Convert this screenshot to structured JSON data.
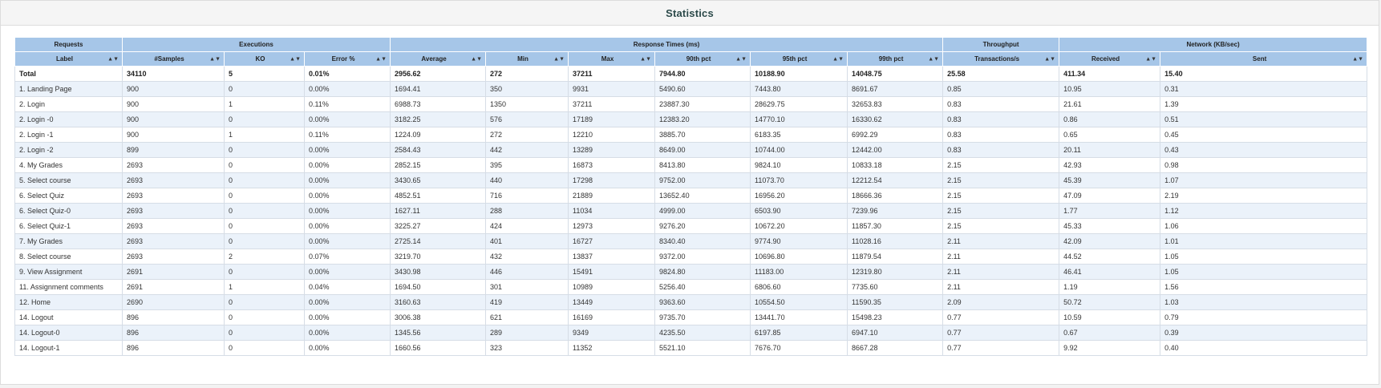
{
  "panel": {
    "title": "Statistics"
  },
  "groups": [
    "Requests",
    "Executions",
    "Response Times (ms)",
    "Throughput",
    "Network (KB/sec)"
  ],
  "columns": [
    "Label",
    "#Samples",
    "KO",
    "Error %",
    "Average",
    "Min",
    "Max",
    "90th pct",
    "95th pct",
    "99th pct",
    "Transactions/s",
    "Received",
    "Sent"
  ],
  "sort_icons": {
    "label": "▲▼",
    "column": "▲▼"
  },
  "total": [
    "Total",
    "34110",
    "5",
    "0.01%",
    "2956.62",
    "272",
    "37211",
    "7944.80",
    "10188.90",
    "14048.75",
    "25.58",
    "411.34",
    "15.40"
  ],
  "rows": [
    [
      "1. Landing Page",
      "900",
      "0",
      "0.00%",
      "1694.41",
      "350",
      "9931",
      "5490.60",
      "7443.80",
      "8691.67",
      "0.85",
      "10.95",
      "0.31"
    ],
    [
      "2. Login",
      "900",
      "1",
      "0.11%",
      "6988.73",
      "1350",
      "37211",
      "23887.30",
      "28629.75",
      "32653.83",
      "0.83",
      "21.61",
      "1.39"
    ],
    [
      "2. Login -0",
      "900",
      "0",
      "0.00%",
      "3182.25",
      "576",
      "17189",
      "12383.20",
      "14770.10",
      "16330.62",
      "0.83",
      "0.86",
      "0.51"
    ],
    [
      "2. Login -1",
      "900",
      "1",
      "0.11%",
      "1224.09",
      "272",
      "12210",
      "3885.70",
      "6183.35",
      "6992.29",
      "0.83",
      "0.65",
      "0.45"
    ],
    [
      "2. Login -2",
      "899",
      "0",
      "0.00%",
      "2584.43",
      "442",
      "13289",
      "8649.00",
      "10744.00",
      "12442.00",
      "0.83",
      "20.11",
      "0.43"
    ],
    [
      "4. My Grades",
      "2693",
      "0",
      "0.00%",
      "2852.15",
      "395",
      "16873",
      "8413.80",
      "9824.10",
      "10833.18",
      "2.15",
      "42.93",
      "0.98"
    ],
    [
      "5. Select course",
      "2693",
      "0",
      "0.00%",
      "3430.65",
      "440",
      "17298",
      "9752.00",
      "11073.70",
      "12212.54",
      "2.15",
      "45.39",
      "1.07"
    ],
    [
      "6. Select Quiz",
      "2693",
      "0",
      "0.00%",
      "4852.51",
      "716",
      "21889",
      "13652.40",
      "16956.20",
      "18666.36",
      "2.15",
      "47.09",
      "2.19"
    ],
    [
      "6. Select Quiz-0",
      "2693",
      "0",
      "0.00%",
      "1627.11",
      "288",
      "11034",
      "4999.00",
      "6503.90",
      "7239.96",
      "2.15",
      "1.77",
      "1.12"
    ],
    [
      "6. Select Quiz-1",
      "2693",
      "0",
      "0.00%",
      "3225.27",
      "424",
      "12973",
      "9276.20",
      "10672.20",
      "11857.30",
      "2.15",
      "45.33",
      "1.06"
    ],
    [
      "7. My Grades",
      "2693",
      "0",
      "0.00%",
      "2725.14",
      "401",
      "16727",
      "8340.40",
      "9774.90",
      "11028.16",
      "2.11",
      "42.09",
      "1.01"
    ],
    [
      "8. Select course",
      "2693",
      "2",
      "0.07%",
      "3219.70",
      "432",
      "13837",
      "9372.00",
      "10696.80",
      "11879.54",
      "2.11",
      "44.52",
      "1.05"
    ],
    [
      "9. View Assignment",
      "2691",
      "0",
      "0.00%",
      "3430.98",
      "446",
      "15491",
      "9824.80",
      "11183.00",
      "12319.80",
      "2.11",
      "46.41",
      "1.05"
    ],
    [
      "11. Assignment comments",
      "2691",
      "1",
      "0.04%",
      "1694.50",
      "301",
      "10989",
      "5256.40",
      "6806.60",
      "7735.60",
      "2.11",
      "1.19",
      "1.56"
    ],
    [
      "12. Home",
      "2690",
      "0",
      "0.00%",
      "3160.63",
      "419",
      "13449",
      "9363.60",
      "10554.50",
      "11590.35",
      "2.09",
      "50.72",
      "1.03"
    ],
    [
      "14. Logout",
      "896",
      "0",
      "0.00%",
      "3006.38",
      "621",
      "16169",
      "9735.70",
      "13441.70",
      "15498.23",
      "0.77",
      "10.59",
      "0.79"
    ],
    [
      "14. Logout-0",
      "896",
      "0",
      "0.00%",
      "1345.56",
      "289",
      "9349",
      "4235.50",
      "6197.85",
      "6947.10",
      "0.77",
      "0.67",
      "0.39"
    ],
    [
      "14. Logout-1",
      "896",
      "0",
      "0.00%",
      "1660.56",
      "323",
      "11352",
      "5521.10",
      "7676.70",
      "8667.28",
      "0.77",
      "9.92",
      "0.40"
    ]
  ]
}
